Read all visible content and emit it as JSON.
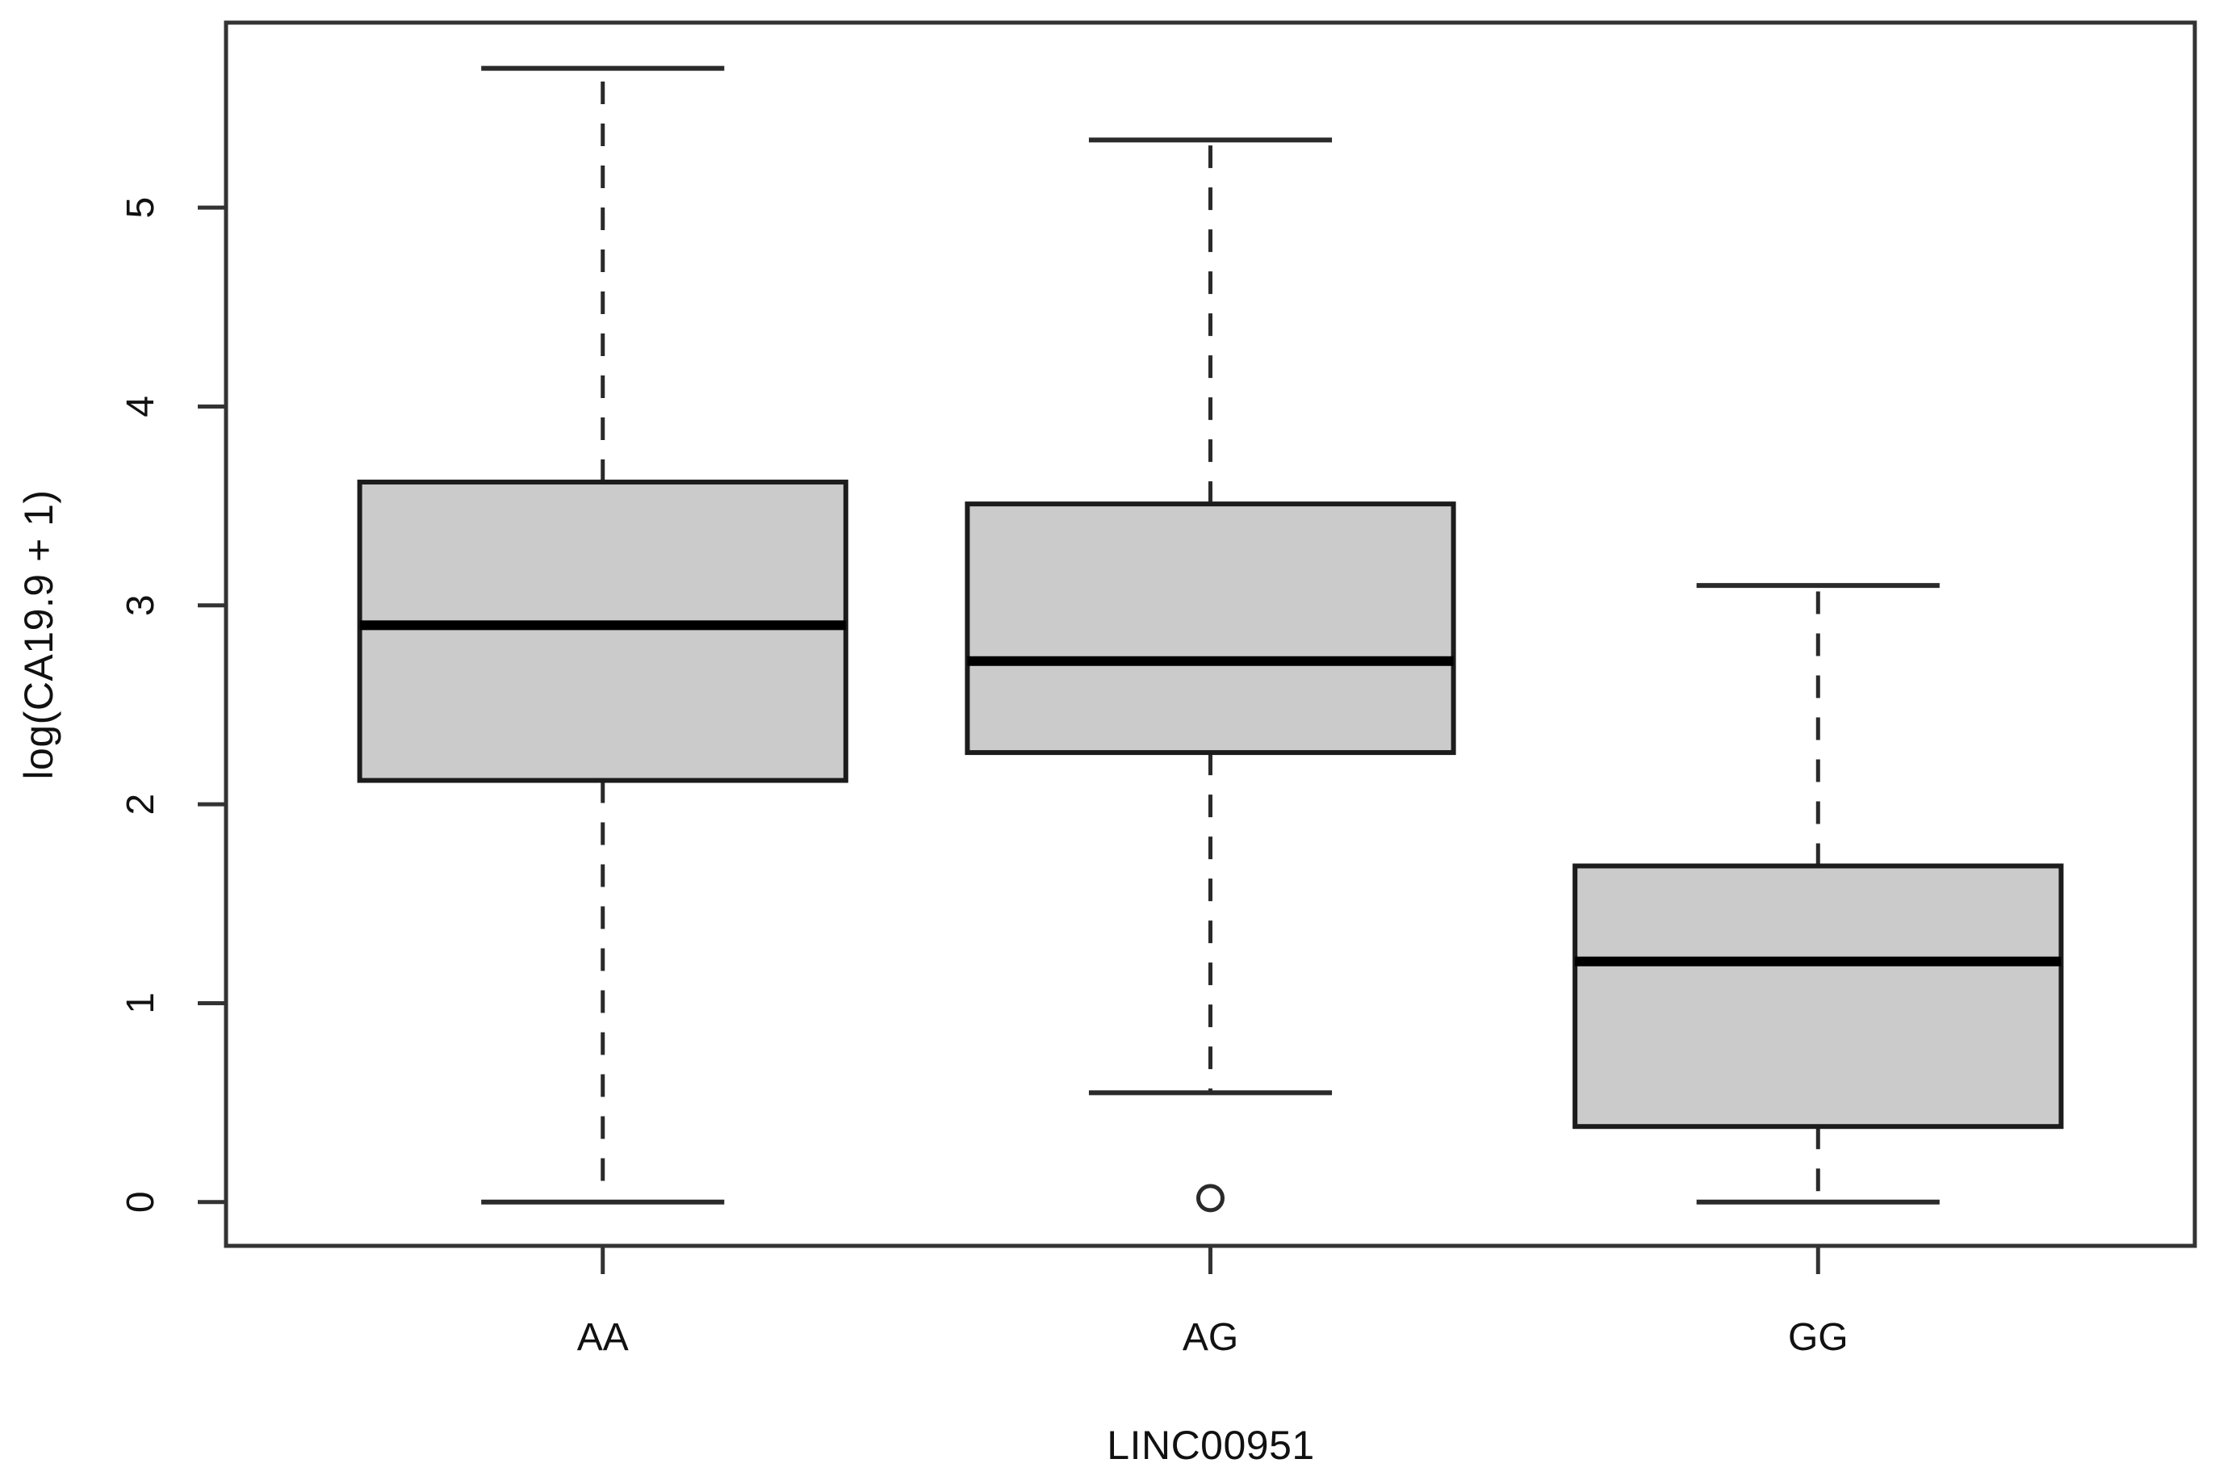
{
  "figure": {
    "background": "#ffffff"
  },
  "chart_data": {
    "type": "boxplot",
    "title": "",
    "xlabel": "LINC00951",
    "ylabel": "log(CA19.9 + 1)",
    "categories": [
      "AA",
      "AG",
      "GG"
    ],
    "y_ticks": [
      0,
      1,
      2,
      3,
      4,
      5
    ],
    "ylim": [
      -0.22,
      5.93
    ],
    "grid": false,
    "legend": false,
    "series": [
      {
        "name": "AA",
        "whisker_low": 0.0,
        "q1": 2.12,
        "median": 2.9,
        "q3": 3.62,
        "whisker_high": 5.7,
        "outliers": []
      },
      {
        "name": "AG",
        "whisker_low": 0.55,
        "q1": 2.26,
        "median": 2.72,
        "q3": 3.51,
        "whisker_high": 5.34,
        "outliers": [
          0.02
        ]
      },
      {
        "name": "GG",
        "whisker_low": 0.0,
        "q1": 0.38,
        "median": 1.21,
        "q3": 1.69,
        "whisker_high": 3.1,
        "outliers": []
      }
    ],
    "colors": {
      "box_fill": "#cbcbcb",
      "box_border": "#1c1c1c",
      "median": "#000000",
      "whisker": "#2a2a2a",
      "frame": "#333333",
      "text": "#111111"
    }
  }
}
